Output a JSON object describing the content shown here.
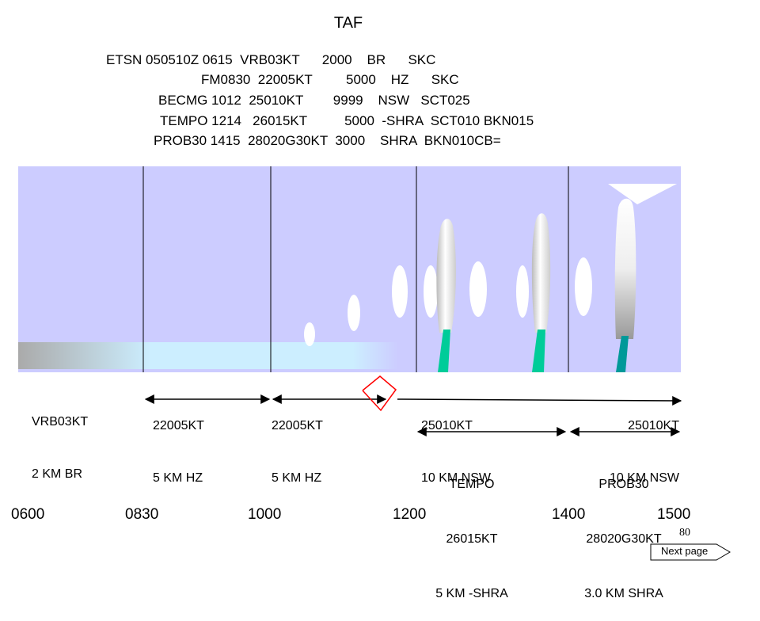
{
  "title": "TAF",
  "taf_lines": [
    "ETSN 050510Z 0615  VRB03KT      2000    BR      SKC",
    "FM0830  22005KT         5000    HZ      SKC",
    "BECMG 1012  25010KT        9999    NSW   SCT025",
    "TEMPO 1214   26015KT          5000  -SHRA  SCT010 BKN015",
    "PROB30 1415  28020G30KT  3000    SHRA  BKN010CB="
  ],
  "time_axis": [
    "0600",
    "0830",
    "1000",
    "1200",
    "1400",
    "1500"
  ],
  "segments": [
    {
      "wind": "VRB03KT",
      "vis": "2 KM BR"
    },
    {
      "wind": "22005KT",
      "vis": "5 KM HZ"
    },
    {
      "wind": "22005KT",
      "vis": "5 KM HZ"
    },
    {
      "wind": "25010KT",
      "vis": "10 KM NSW"
    },
    {
      "wind": "25010KT",
      "vis": "10 KM NSW"
    }
  ],
  "tempo": {
    "label": "TEMPO",
    "wind": "26015KT",
    "vis": "5 KM -SHRA"
  },
  "prob": {
    "label": "PROB30",
    "wind": "28020G30KT",
    "vis": "3.0 KM SHRA"
  },
  "page_number": "80",
  "next_page": "Next page",
  "colors": {
    "sky": "#ccccff",
    "haze_start": "#aaaaaa",
    "haze_end": "#cceeff",
    "rain": "#00cc99",
    "rain_heavy": "#009999",
    "arrow_red": "#ff0000"
  }
}
